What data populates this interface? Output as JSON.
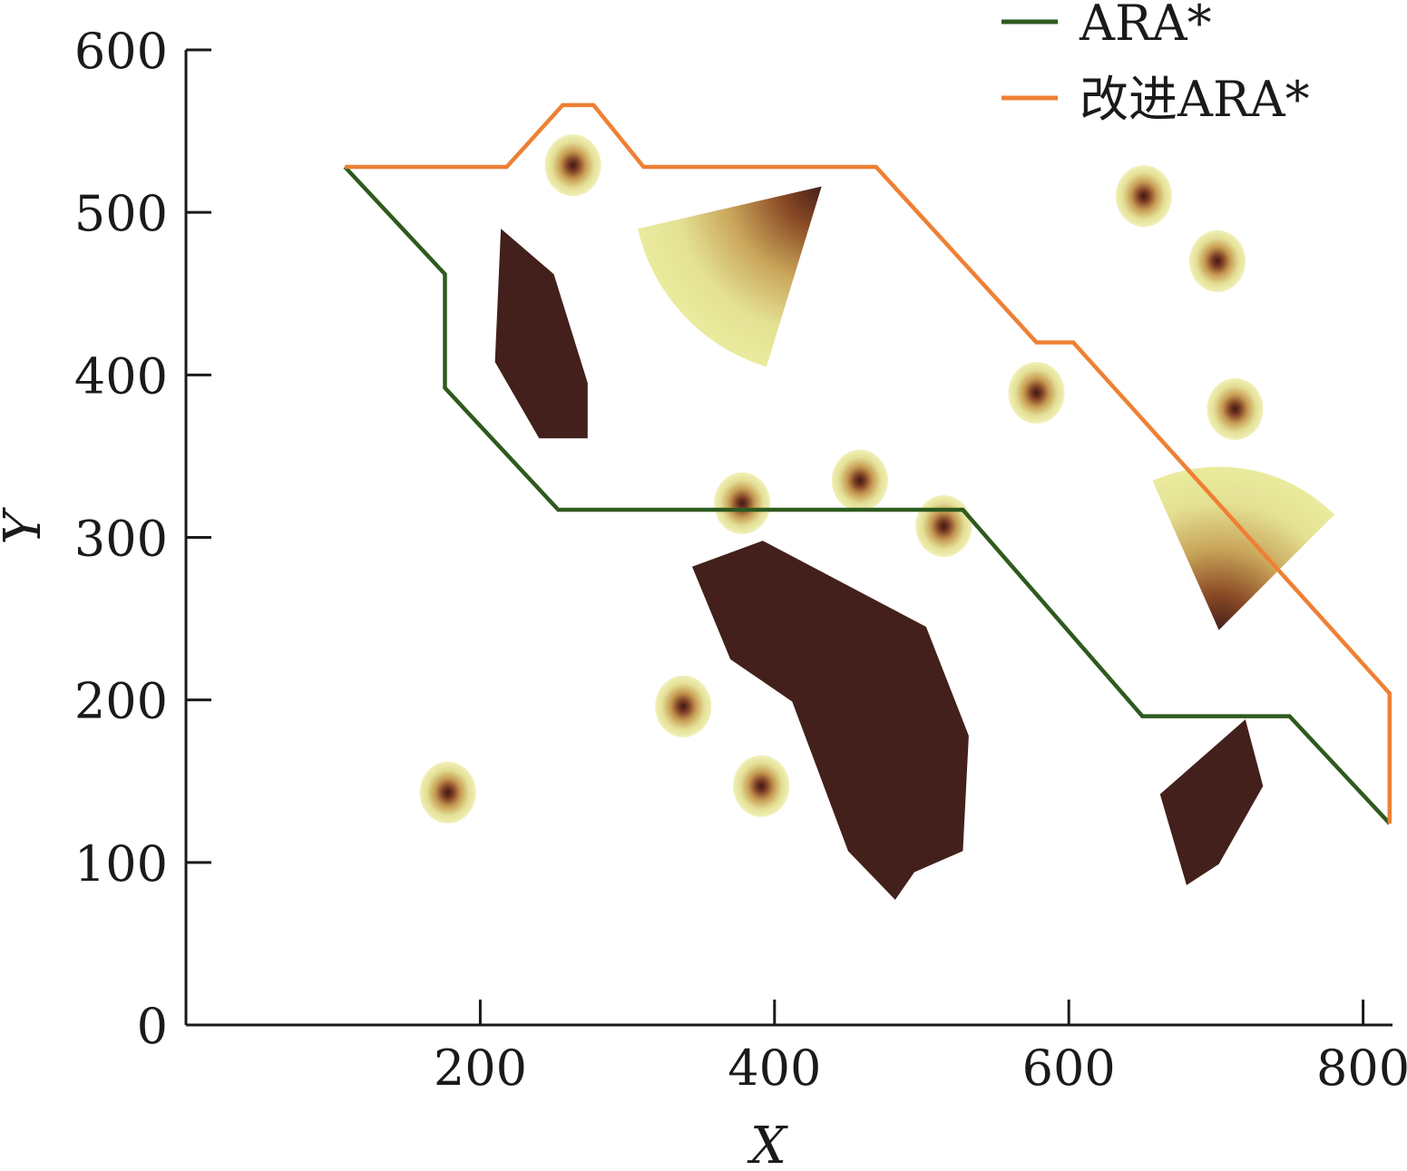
{
  "chart_data": {
    "type": "line",
    "title": "",
    "xlabel": "X",
    "ylabel": "Y",
    "xlim": [
      0,
      820
    ],
    "ylim": [
      0,
      600
    ],
    "x_ticks": [
      200,
      400,
      600,
      800
    ],
    "y_ticks": [
      0,
      100,
      200,
      300,
      400,
      500,
      600
    ],
    "grid": false,
    "legend_position": "top-right",
    "series": [
      {
        "name": "ARA*",
        "color": "#2e5a1e",
        "points": [
          [
            108,
            528
          ],
          [
            176,
            462
          ],
          [
            176,
            392
          ],
          [
            253,
            317
          ],
          [
            528,
            317
          ],
          [
            650,
            190
          ],
          [
            750,
            190
          ],
          [
            818,
            124
          ]
        ]
      },
      {
        "name": "改进ARA*",
        "color": "#ee8034",
        "points": [
          [
            108,
            528
          ],
          [
            218,
            528
          ],
          [
            256,
            566
          ],
          [
            277,
            566
          ],
          [
            311,
            528
          ],
          [
            469,
            528
          ],
          [
            578,
            420
          ],
          [
            603,
            420
          ],
          [
            818,
            204
          ],
          [
            818,
            124
          ]
        ]
      }
    ],
    "obstacles": [
      {
        "type": "polygon",
        "color": "#43201b",
        "points": [
          [
            214,
            490
          ],
          [
            250,
            462
          ],
          [
            273,
            395
          ],
          [
            273,
            361
          ],
          [
            240,
            361
          ],
          [
            210,
            408
          ]
        ]
      },
      {
        "type": "polygon",
        "color": "#43201b",
        "points": [
          [
            344,
            282
          ],
          [
            392,
            298
          ],
          [
            503,
            245
          ],
          [
            532,
            178
          ],
          [
            528,
            107
          ],
          [
            495,
            94
          ],
          [
            482,
            77
          ],
          [
            450,
            107
          ],
          [
            412,
            199
          ],
          [
            370,
            225
          ]
        ]
      },
      {
        "type": "polygon",
        "color": "#43201b",
        "points": [
          [
            662,
            142
          ],
          [
            720,
            188
          ],
          [
            732,
            147
          ],
          [
            702,
            99
          ],
          [
            680,
            86
          ]
        ]
      },
      {
        "type": "sector",
        "apex": [
          432,
          516
        ],
        "radius": 208,
        "start_angle": 193,
        "end_angle": 253,
        "gradient": [
          "#43201b",
          "#eaeb9d"
        ]
      },
      {
        "type": "sector",
        "apex": [
          702,
          243
        ],
        "radius": 180,
        "start_angle": 45,
        "end_angle": 114,
        "gradient": [
          "#43201b",
          "#eaeb9d"
        ]
      }
    ],
    "threat_points": [
      [
        263,
        529
      ],
      [
        651,
        510
      ],
      [
        701,
        470
      ],
      [
        578,
        389
      ],
      [
        713,
        379
      ],
      [
        378,
        321
      ],
      [
        458,
        335
      ],
      [
        515,
        307
      ],
      [
        338,
        196
      ],
      [
        178,
        143
      ],
      [
        391,
        147
      ]
    ]
  }
}
